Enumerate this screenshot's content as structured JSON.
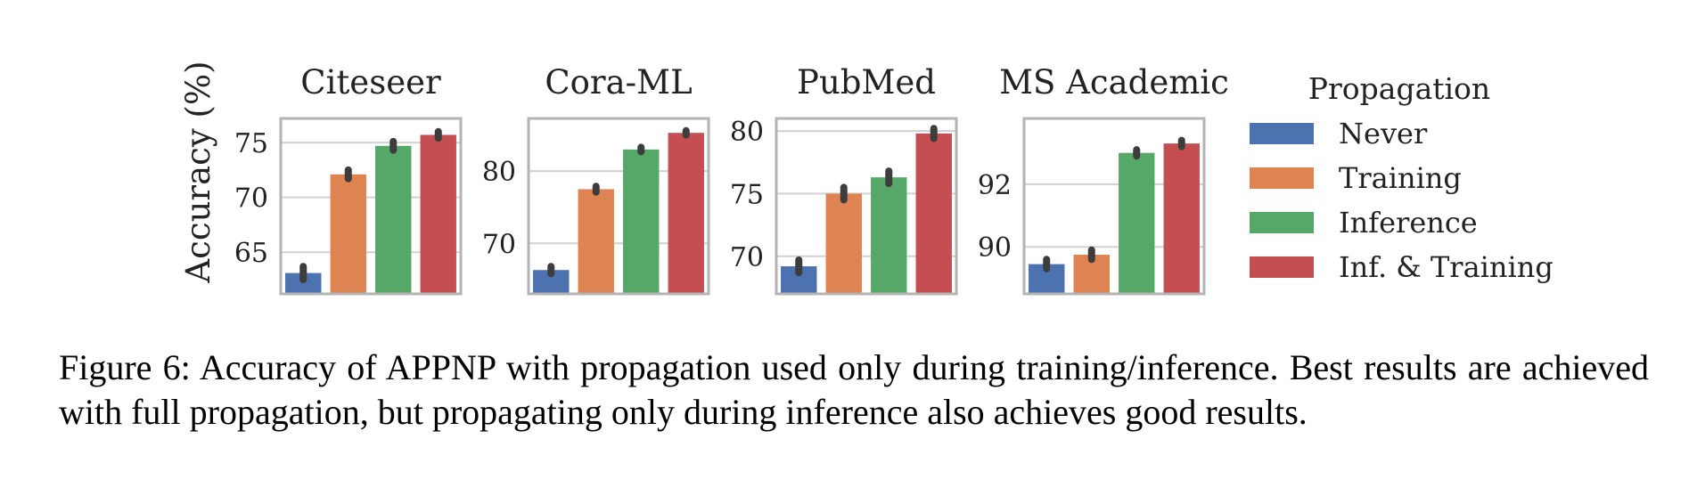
{
  "figure": {
    "ylabel": "Accuracy (%)",
    "legend_title": "Propagation",
    "caption": "Figure 6: Accuracy of APPNP with propagation used only during training/inference. Best results are achieved with full propagation, but propagating only during inference also achieves good results."
  },
  "series_colors": [
    "#4c72b0",
    "#dd8452",
    "#55a868",
    "#c44e52"
  ],
  "chart_data": [
    {
      "type": "bar",
      "title": "Citeseer",
      "ylabel": "Accuracy (%)",
      "categories": [
        "Never",
        "Training",
        "Inference",
        "Inf. & Training"
      ],
      "values": [
        63.1,
        72.1,
        74.7,
        75.7
      ],
      "errors": [
        0.6,
        0.4,
        0.4,
        0.3
      ],
      "ylim": [
        61.2,
        77.2
      ],
      "yticks": [
        65,
        70,
        75
      ],
      "grid": true
    },
    {
      "type": "bar",
      "title": "Cora-ML",
      "categories": [
        "Never",
        "Training",
        "Inference",
        "Inf. & Training"
      ],
      "values": [
        66.3,
        77.5,
        83.0,
        85.3
      ],
      "errors": [
        0.5,
        0.4,
        0.3,
        0.3
      ],
      "ylim": [
        63.0,
        87.3
      ],
      "yticks": [
        70,
        80
      ],
      "grid": true
    },
    {
      "type": "bar",
      "title": "PubMed",
      "categories": [
        "Never",
        "Training",
        "Inference",
        "Inf. & Training"
      ],
      "values": [
        69.2,
        75.0,
        76.3,
        79.8
      ],
      "errors": [
        0.5,
        0.5,
        0.5,
        0.4
      ],
      "ylim": [
        67.0,
        81.0
      ],
      "yticks": [
        70,
        75,
        80
      ],
      "grid": true
    },
    {
      "type": "bar",
      "title": "MS Academic",
      "categories": [
        "Never",
        "Training",
        "Inference",
        "Inf. & Training"
      ],
      "values": [
        89.45,
        89.75,
        93.0,
        93.3
      ],
      "errors": [
        0.15,
        0.15,
        0.1,
        0.1
      ],
      "ylim": [
        88.5,
        94.1
      ],
      "yticks": [
        90,
        92
      ],
      "grid": true
    }
  ],
  "legend": {
    "title": "Propagation",
    "placement": "right",
    "items": [
      "Never",
      "Training",
      "Inference",
      "Inf. & Training"
    ]
  }
}
